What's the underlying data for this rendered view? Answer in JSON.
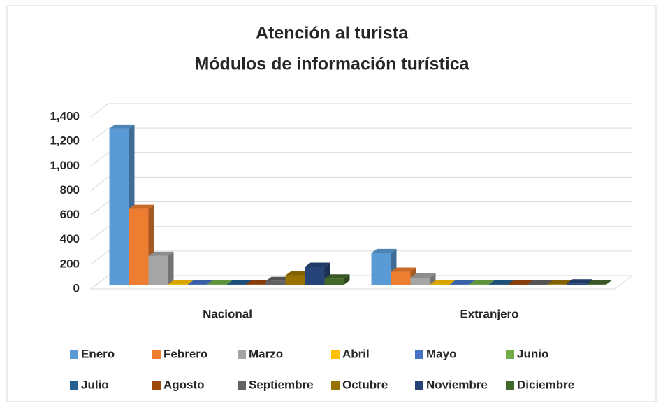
{
  "chart_data": {
    "type": "bar3d",
    "title": "Atención al turista",
    "subtitle": "Módulos de información turística",
    "categories": [
      "Nacional",
      "Extranjero"
    ],
    "series": [
      {
        "name": "Enero",
        "color": "#5b9bd5",
        "values": [
          1270,
          257
        ]
      },
      {
        "name": "Febrero",
        "color": "#ed7d31",
        "values": [
          617,
          105
        ]
      },
      {
        "name": "Marzo",
        "color": "#a5a5a5",
        "values": [
          234,
          57
        ]
      },
      {
        "name": "Abril",
        "color": "#ffc000",
        "values": [
          2,
          1
        ]
      },
      {
        "name": "Mayo",
        "color": "#4472c4",
        "values": [
          1,
          1
        ]
      },
      {
        "name": "Junio",
        "color": "#70ad47",
        "values": [
          1,
          1
        ]
      },
      {
        "name": "Julio",
        "color": "#255e91",
        "values": [
          1,
          1
        ]
      },
      {
        "name": "Agosto",
        "color": "#9e480e",
        "values": [
          5,
          3
        ]
      },
      {
        "name": "Septiembre",
        "color": "#636363",
        "values": [
          30,
          3
        ]
      },
      {
        "name": "Octubre",
        "color": "#997300",
        "values": [
          75,
          4
        ]
      },
      {
        "name": "Noviembre",
        "color": "#264478",
        "values": [
          145,
          10
        ]
      },
      {
        "name": "Diciembre",
        "color": "#43682b",
        "values": [
          50,
          2
        ]
      }
    ],
    "ylim": [
      0,
      1400
    ],
    "yticks": [
      0,
      200,
      400,
      600,
      800,
      {
        "value": 1000,
        "label": "1,000"
      },
      {
        "value": 1200,
        "label": "1,200"
      },
      {
        "value": 1400,
        "label": "1,400"
      }
    ],
    "grid": true,
    "legend": "bottom"
  }
}
